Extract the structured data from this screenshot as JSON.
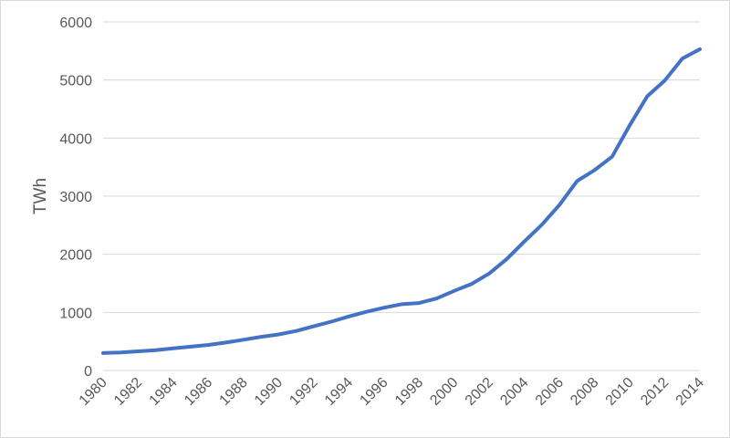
{
  "chart_data": {
    "type": "line",
    "title": "",
    "xlabel": "",
    "ylabel": "TWh",
    "ylim": [
      0,
      6000
    ],
    "y_ticks": [
      0,
      1000,
      2000,
      3000,
      4000,
      5000,
      6000
    ],
    "x_tick_labels": [
      "1980",
      "1982",
      "1984",
      "1986",
      "1988",
      "1990",
      "1992",
      "1994",
      "1996",
      "1998",
      "2000",
      "2002",
      "2004",
      "2006",
      "2008",
      "2010",
      "2012",
      "2014"
    ],
    "grid": "horizontal",
    "legend": "none",
    "line_color": "#4472c4",
    "x": [
      1980,
      1981,
      1982,
      1983,
      1984,
      1985,
      1986,
      1987,
      1988,
      1989,
      1990,
      1991,
      1992,
      1993,
      1994,
      1995,
      1996,
      1997,
      1998,
      1999,
      2000,
      2001,
      2002,
      2003,
      2004,
      2005,
      2006,
      2007,
      2008,
      2009,
      2010,
      2011,
      2012,
      2013,
      2014
    ],
    "series": [
      {
        "values": [
          300,
          310,
          330,
          350,
          380,
          410,
          440,
          480,
          530,
          580,
          620,
          680,
          760,
          840,
          930,
          1010,
          1080,
          1140,
          1160,
          1240,
          1370,
          1490,
          1670,
          1920,
          2220,
          2510,
          2850,
          3260,
          3450,
          3680,
          4220,
          4720,
          4990,
          5370,
          5530
        ]
      }
    ]
  }
}
